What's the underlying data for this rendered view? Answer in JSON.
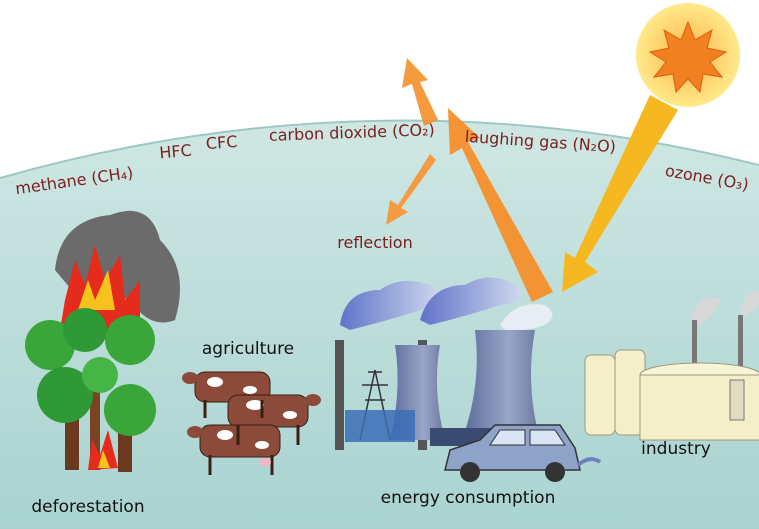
{
  "atmosphere": {
    "gases": [
      "methane (CH₄)",
      "HFC",
      "CFC",
      "carbon dioxide (CO₂)",
      "laughing gas (N₂O)",
      "ozone (O₃)"
    ],
    "reflection": "reflection"
  },
  "sources": {
    "agriculture": "agriculture",
    "deforestation": "deforestation",
    "energy": "energy consumption",
    "industry": "industry"
  }
}
